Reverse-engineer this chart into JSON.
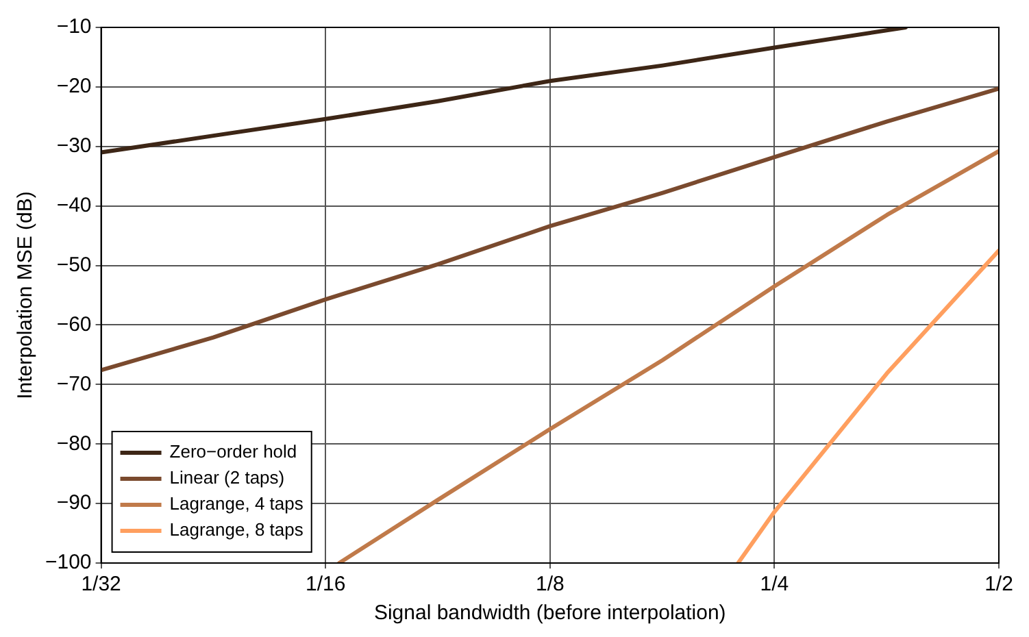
{
  "chart_data": {
    "type": "line",
    "xlabel": "Signal bandwidth (before interpolation)",
    "ylabel": "Interpolation MSE (dB)",
    "log": "x",
    "grid": true,
    "legend": "bottom left",
    "marker": "none",
    "line_style": "solid",
    "xlim": [
      0.03125,
      0.5
    ],
    "xticks": [
      {
        "value": 0.03125,
        "label": "1/32"
      },
      {
        "value": 0.0625,
        "label": "1/16"
      },
      {
        "value": 0.125,
        "label": "1/8"
      },
      {
        "value": 0.25,
        "label": "1/4"
      },
      {
        "value": 0.5,
        "label": "1/2"
      }
    ],
    "ylim": [
      -100,
      -10
    ],
    "yticks": [
      {
        "value": -100,
        "label": "−100"
      },
      {
        "value": -90,
        "label": "−90"
      },
      {
        "value": -80,
        "label": "−80"
      },
      {
        "value": -70,
        "label": "−70"
      },
      {
        "value": -60,
        "label": "−60"
      },
      {
        "value": -50,
        "label": "−50"
      },
      {
        "value": -40,
        "label": "−40"
      },
      {
        "value": -30,
        "label": "−30"
      },
      {
        "value": -20,
        "label": "−20"
      },
      {
        "value": -10,
        "label": "−10"
      }
    ],
    "series": [
      {
        "name": "Zero−order hold",
        "color": "#3d2616",
        "x": [
          0.03125,
          0.0442,
          0.0625,
          0.0884,
          0.125,
          0.177,
          0.25,
          0.375
        ],
        "values": [
          -31,
          -28.2,
          -25.4,
          -22.4,
          -19,
          -16.4,
          -13.4,
          -10
        ]
      },
      {
        "name": "Linear (2 taps)",
        "color": "#7a4a2e",
        "x": [
          0.03125,
          0.0442,
          0.0625,
          0.0884,
          0.125,
          0.177,
          0.25,
          0.354,
          0.5
        ],
        "values": [
          -67.6,
          -62.1,
          -55.7,
          -49.8,
          -43.4,
          -37.8,
          -31.8,
          -25.8,
          -20.3
        ]
      },
      {
        "name": "Lagrange, 4 taps",
        "color": "#c07a4a",
        "x": [
          0.0652,
          0.0884,
          0.125,
          0.177,
          0.25,
          0.354,
          0.5
        ],
        "values": [
          -100,
          -89.4,
          -77.5,
          -65.9,
          -53.5,
          -41.5,
          -30.8
        ]
      },
      {
        "name": "Lagrange, 8 taps",
        "color": "#ff9f5f",
        "x": [
          0.2235,
          0.25,
          0.354,
          0.5
        ],
        "values": [
          -100,
          -91.4,
          -68.1,
          -47.5
        ]
      }
    ]
  }
}
